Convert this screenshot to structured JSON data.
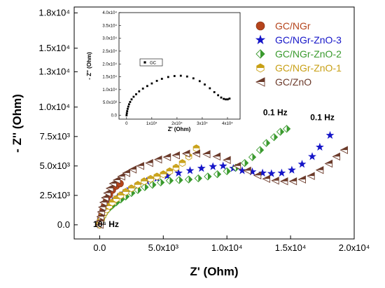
{
  "chart_data": [
    {
      "type": "scatter",
      "xlabel": "Z' (Ohm)",
      "ylabel": "- Z'' (Ohm)",
      "xlim": [
        -2000,
        20000
      ],
      "ylim": [
        -1200,
        18500
      ],
      "xticks": [
        {
          "v": 0,
          "label": "0.0"
        },
        {
          "v": 5000,
          "label": "5.0x10³"
        },
        {
          "v": 10000,
          "label": "1.0x10⁴"
        },
        {
          "v": 15000,
          "label": "1.5x10⁴"
        },
        {
          "v": 20000,
          "label": "2.0x10⁴"
        }
      ],
      "yticks": [
        {
          "v": 0,
          "label": "0.0"
        },
        {
          "v": 2500,
          "label": "2.5x10³"
        },
        {
          "v": 5000,
          "label": "5.0x10³"
        },
        {
          "v": 7500,
          "label": "7.5x10³"
        },
        {
          "v": 10000,
          "label": "1.0x10⁴"
        },
        {
          "v": 13000,
          "label": "1.3x10⁴"
        },
        {
          "v": 15000,
          "label": "1.5x10⁴"
        },
        {
          "v": 18000,
          "label": "1.8x10⁴"
        }
      ],
      "legend_position": "top-right",
      "annotations": [
        {
          "text": "0.1 Hz",
          "x": 13800,
          "y": 9300
        },
        {
          "text": "0.1 Hz",
          "x": 17500,
          "y": 8900
        },
        {
          "text": "10⁶ Hz",
          "x": 500,
          "y": -200
        }
      ],
      "series": [
        {
          "name": "GC/NGr",
          "color": "#b5441c",
          "marker": "circle",
          "x": [
            0,
            30,
            70,
            120,
            190,
            280,
            400,
            560,
            760,
            1000,
            1300,
            1600
          ],
          "y": [
            0,
            150,
            350,
            600,
            900,
            1250,
            1650,
            2100,
            2550,
            2950,
            3300,
            3500
          ]
        },
        {
          "name": "GC/NGr-ZnO-3",
          "color": "#1515c8",
          "marker": "star",
          "x": [
            0,
            100,
            250,
            450,
            700,
            1000,
            1400,
            1850,
            2400,
            3000,
            3700,
            4500,
            5300,
            6200,
            7100,
            8000,
            8900,
            9700,
            10500,
            11200,
            12000,
            12800,
            13500,
            14300,
            15100,
            15900,
            16700,
            17300,
            18100
          ],
          "y": [
            0,
            450,
            850,
            1250,
            1650,
            2000,
            2350,
            2700,
            3050,
            3350,
            3700,
            3950,
            4150,
            4400,
            4600,
            4800,
            4950,
            5000,
            4800,
            4600,
            4500,
            4400,
            4350,
            4400,
            4650,
            5150,
            5800,
            6600,
            7600
          ]
        },
        {
          "name": "GC/NGr-ZnO-2",
          "color": "#3a9a2e",
          "marker": "half-diamond",
          "x": [
            0,
            50,
            120,
            220,
            350,
            520,
            740,
            1000,
            1300,
            1650,
            2050,
            2500,
            3000,
            3550,
            4150,
            4800,
            5500,
            6250,
            7000,
            7750,
            8500,
            9250,
            10000,
            10700,
            11400,
            12000,
            12600,
            13100,
            13700,
            14200,
            14700
          ],
          "y": [
            0,
            200,
            400,
            650,
            900,
            1150,
            1400,
            1650,
            1900,
            2150,
            2400,
            2700,
            2950,
            3200,
            3400,
            3600,
            3750,
            3800,
            3850,
            3950,
            4100,
            4300,
            4550,
            4850,
            5250,
            5750,
            6350,
            6950,
            7450,
            7900,
            8150
          ]
        },
        {
          "name": "GC/NGr-ZnO-1",
          "color": "#c8a016",
          "marker": "hexagon-half",
          "x": [
            0,
            30,
            80,
            150,
            250,
            380,
            550,
            760,
            1000,
            1300,
            1650,
            2050,
            2500,
            3000,
            3500,
            4000,
            4500,
            5000,
            5500,
            6000,
            6500,
            7000,
            7600
          ],
          "y": [
            0,
            150,
            350,
            550,
            800,
            1050,
            1300,
            1600,
            1900,
            2200,
            2500,
            2800,
            3100,
            3400,
            3700,
            3900,
            4100,
            4300,
            4550,
            4850,
            5250,
            5800,
            6500
          ]
        },
        {
          "name": "GC/ZnO",
          "color": "#6b3a2a",
          "marker": "left-triangle",
          "x": [
            0,
            20,
            60,
            120,
            200,
            300,
            430,
            600,
            800,
            1050,
            1350,
            1700,
            2100,
            2600,
            3200,
            3900,
            4600,
            5300,
            6000,
            6800,
            7600,
            8400,
            9200,
            10000,
            10800,
            11600,
            12400,
            13100,
            13800,
            14500,
            15200,
            15900,
            16600,
            17300,
            18000,
            18600,
            19200
          ],
          "y": [
            0,
            300,
            700,
            1100,
            1500,
            1900,
            2300,
            2700,
            3100,
            3500,
            3800,
            4100,
            4400,
            4700,
            5000,
            5250,
            5550,
            5750,
            5900,
            6050,
            6050,
            6000,
            5800,
            5500,
            5000,
            4600,
            4200,
            3900,
            3750,
            3700,
            3700,
            3850,
            4150,
            4650,
            5200,
            5800,
            6350
          ]
        }
      ]
    },
    {
      "type": "scatter",
      "xlabel": "Z' (Ohm)",
      "ylabel": "- Z'' (Ohm)",
      "xlim": [
        -3000,
        45000
      ],
      "ylim": [
        -1500,
        40000
      ],
      "xticks": [
        {
          "v": 0,
          "label": "0"
        },
        {
          "v": 10000,
          "label": "1x10⁴"
        },
        {
          "v": 20000,
          "label": "2x10⁴"
        },
        {
          "v": 30000,
          "label": "3x10⁴"
        },
        {
          "v": 40000,
          "label": "4x10⁴"
        }
      ],
      "yticks": [
        {
          "v": 0,
          "label": "0.0"
        },
        {
          "v": 5000,
          "label": "5.0x10³"
        },
        {
          "v": 10000,
          "label": "1.0x10⁴"
        },
        {
          "v": 15000,
          "label": "1.5x10⁴"
        },
        {
          "v": 20000,
          "label": "2.0x10⁴"
        },
        {
          "v": 25000,
          "label": "2.5x10⁴"
        },
        {
          "v": 30000,
          "label": "3.0x10⁴"
        },
        {
          "v": 35000,
          "label": "3.5x10⁴"
        },
        {
          "v": 40000,
          "label": "4.0x10⁴"
        }
      ],
      "legend_position": "top-left",
      "series": [
        {
          "name": "GC",
          "color": "#000000",
          "marker": "square",
          "x": [
            0,
            100,
            250,
            450,
            700,
            1000,
            1400,
            2000,
            2800,
            3800,
            5000,
            6500,
            8200,
            10000,
            12000,
            14000,
            16500,
            19000,
            21500,
            24000,
            26500,
            29000,
            31000,
            33000,
            34800,
            36300,
            37500,
            38500,
            39300,
            40100,
            40800
          ],
          "y": [
            0,
            800,
            1600,
            2500,
            3400,
            4300,
            5200,
            6200,
            7200,
            8200,
            9300,
            10400,
            11400,
            12400,
            13400,
            14200,
            14900,
            15300,
            15400,
            15100,
            14400,
            13300,
            12000,
            10500,
            9000,
            7800,
            6900,
            6400,
            6200,
            6200,
            6500
          ]
        }
      ]
    }
  ]
}
